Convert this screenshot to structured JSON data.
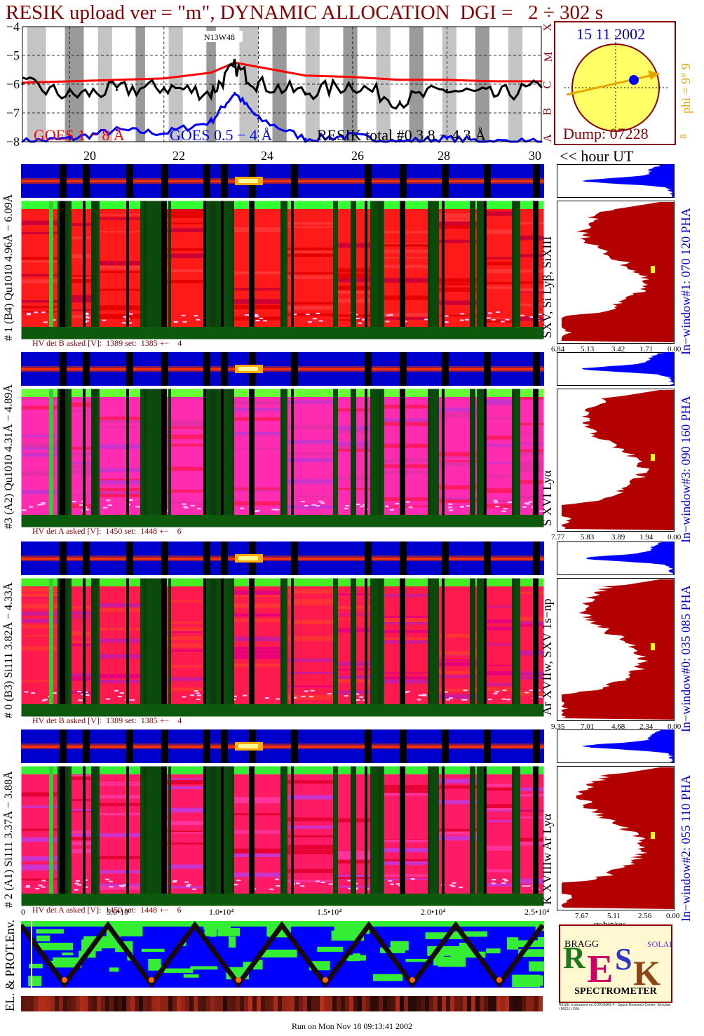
{
  "header": {
    "title": "RESIK upload ver = \"m\", DYNAMIC ALLOCATION  DGI =   2 ÷ 302 s"
  },
  "goes_panel": {
    "y_ticks": [
      "−4",
      "−5",
      "−6",
      "−7",
      "−8"
    ],
    "class_labels": [
      "X",
      "M",
      "C",
      "B",
      "A"
    ],
    "legend_goes1": "GOES 1 − 8 Å",
    "legend_goes2": "GOES 0.5 − 4 Å",
    "legend_resik": "RESIK total #0  3.8 − 4.3 Å",
    "marker_text": "N13W48",
    "hour_ticks": [
      "20",
      "22",
      "24",
      "26",
      "28",
      "30"
    ],
    "hour_label": "<< hour UT"
  },
  "sun_panel": {
    "date": "15 11 2002",
    "phi_label": "phi =  9°  9",
    "side_marker": "8",
    "dump": "Dump: 07228"
  },
  "channels": [
    {
      "left_label": "# 1 (B4) Qu1010 4.96Å − 6.09Å",
      "line_label": "SXV, Si Lyβ, SiXIII",
      "window_label": "In−window#1:  070 120 PHA",
      "hv_text": "HV det B asked [V]:  1389 set:  1385 +−    4",
      "axis": [
        "6.84",
        "5.13",
        "3.42",
        "1.71",
        "0.00"
      ]
    },
    {
      "left_label": "#3 (A2) Qu1010  4.31Å − 4.89Å",
      "line_label": "S XVI Lyα",
      "window_label": "In−window#3:  090 160 PHA",
      "hv_text": "HV det A asked [V]:  1450 set:  1448 +−    6",
      "axis": [
        "7.77",
        "5.83",
        "3.89",
        "1.94",
        "0.00"
      ]
    },
    {
      "left_label": "# 0 (B3) Si111  3.82Å − 4.33Å",
      "line_label": "Ar XVIIw,  SXV 1s−np",
      "window_label": "In−window#0:  035 085 PHA",
      "hv_text": "HV det B asked [V]:  1389 set:  1385 +−    4",
      "axis": [
        "9.35",
        "7.01",
        "4.68",
        "2.34",
        "0.00"
      ]
    },
    {
      "left_label": "# 2 (A1) Si111  3.37Å − 3.88Å",
      "line_label": "K XVIIIw  Ar Lyα",
      "window_label": "In−window#2:  055 110 PHA",
      "hv_text": "HV det A asked [V]:  1450 set:  1448 +−    6",
      "axis": [
        "7.67",
        "5.11",
        "2.56",
        "0.00"
      ],
      "axis_unit": "cts/bin/sec"
    }
  ],
  "env_panel": {
    "label": "EL. & PROT.Env.",
    "x_ticks": [
      "0",
      "5.0•10³",
      "1.0•10⁴",
      "1.5•10⁴",
      "2.0•10⁴",
      "2.5•10⁴"
    ]
  },
  "logo": {
    "big": "RESIK",
    "bragg": "BRAGG",
    "solar": "SOLAR",
    "sub": "SPECTROMETER",
    "fine_print": "RESIK: Instrument on CORONAS-F - Space Research Centre, Wroclaw / MSSL / RAL"
  },
  "footer": {
    "run_text": "Run on Mon Nov 18 09:13:41 2002"
  },
  "colors": {
    "title": "#8b0000",
    "goes_long": "#ff0000",
    "goes_short": "#0000ff",
    "resik": "#000000",
    "sun_fill": "#ffff66",
    "spectrum_fill": "#b30000",
    "strip_fill": "#0000ff",
    "phi_color": "#e6a700"
  },
  "chart_data": [
    {
      "type": "line",
      "title": "",
      "xlabel": "<< hour UT",
      "ylabel": "",
      "x_ticks": [
        "20",
        "22",
        "24",
        "26",
        "28",
        "30"
      ],
      "y_ticks": [
        -4,
        -5,
        -6,
        -7,
        -8
      ],
      "ylim": [
        -8,
        -4
      ],
      "xlim": [
        19,
        30
      ],
      "grid": true,
      "series": [
        {
          "name": "GOES 1 − 8 Å",
          "x": [
            19,
            20,
            21,
            22,
            23,
            23.5,
            24,
            25,
            26,
            27,
            28,
            29,
            30
          ],
          "values": [
            -5.95,
            -5.9,
            -5.85,
            -5.8,
            -5.6,
            -5.25,
            -5.4,
            -5.7,
            -5.75,
            -5.85,
            -5.85,
            -5.9,
            -5.9
          ]
        },
        {
          "name": "GOES 0.5 − 4 Å",
          "x": [
            19,
            20,
            21,
            22,
            23,
            23.5,
            24,
            25,
            26,
            27,
            28,
            29,
            30
          ],
          "values": [
            -8.0,
            -7.9,
            -7.6,
            -7.7,
            -7.3,
            -6.3,
            -7.2,
            -7.9,
            -7.8,
            -8.0,
            -7.9,
            -8.0,
            -8.0
          ]
        },
        {
          "name": "RESIK total #0  3.8 − 4.3 Å",
          "x": [
            19,
            20,
            21,
            22,
            23,
            23.5,
            24,
            25,
            26,
            27,
            28,
            29,
            30
          ],
          "values": [
            -6.0,
            -6.4,
            -6.2,
            -6.1,
            -6.3,
            -5.4,
            -6.0,
            -6.3,
            -6.0,
            -6.6,
            -6.2,
            -6.4,
            -6.1
          ]
        }
      ]
    }
  ]
}
